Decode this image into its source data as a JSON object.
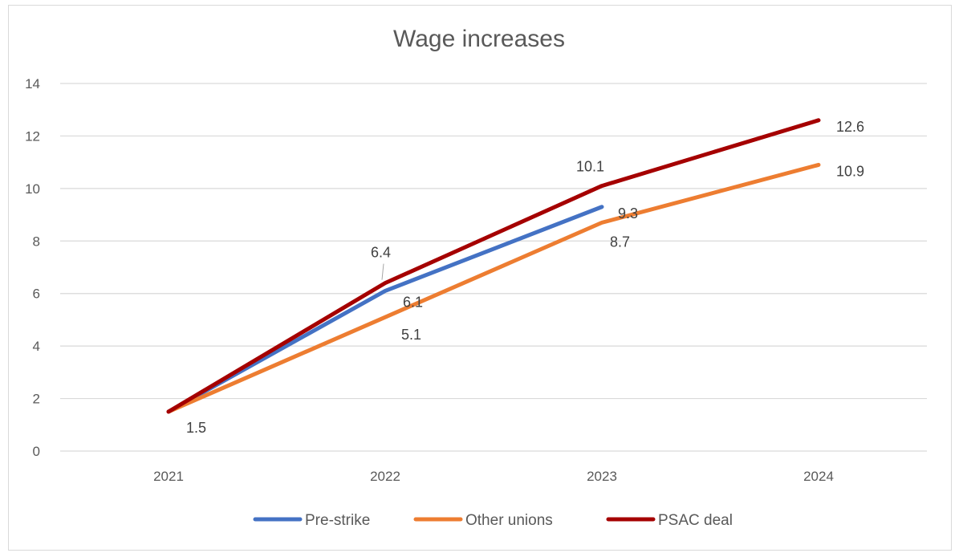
{
  "chart_data": {
    "type": "line",
    "title": "Wage increases",
    "categories": [
      "2021",
      "2022",
      "2023",
      "2024"
    ],
    "ylim": [
      0,
      14
    ],
    "yticks": [
      0,
      2,
      4,
      6,
      8,
      10,
      12,
      14
    ],
    "grid": true,
    "legend_position": "bottom",
    "series": [
      {
        "name": "Pre-strike",
        "color": "#4472c4",
        "values": [
          1.5,
          6.1,
          9.3,
          null
        ],
        "labels": [
          "",
          "6.1",
          "9.3",
          ""
        ]
      },
      {
        "name": "Other unions",
        "color": "#ed7d31",
        "values": [
          1.5,
          5.1,
          8.7,
          10.9
        ],
        "labels": [
          "",
          "5.1",
          "8.7",
          "10.9"
        ]
      },
      {
        "name": "PSAC deal",
        "color": "#a50000",
        "values": [
          1.5,
          6.4,
          10.1,
          12.6
        ],
        "labels": [
          "1.5",
          "6.4",
          "10.1",
          "12.6"
        ]
      }
    ]
  }
}
